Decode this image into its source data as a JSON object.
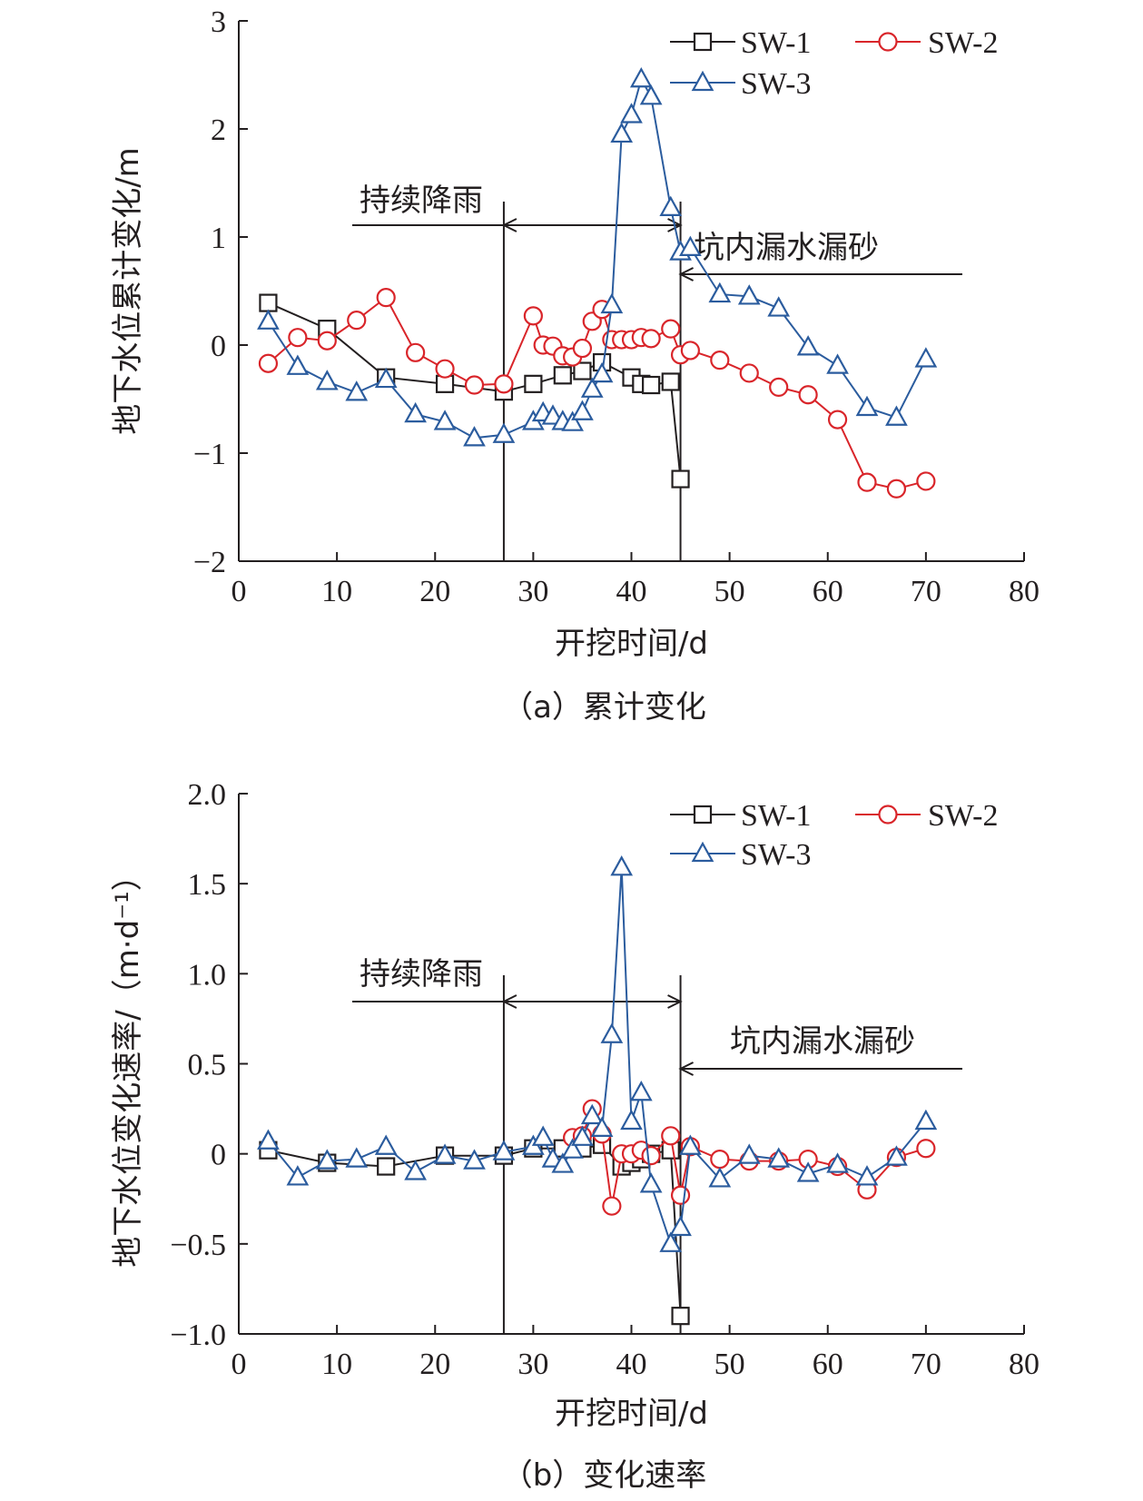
{
  "chart_data": [
    {
      "type": "line",
      "caption": "（a）累计变化",
      "xlabel": "开挖时间/d",
      "ylabel": "地下水位累计变化/m",
      "xlim": [
        0,
        80
      ],
      "ylim": [
        -2,
        3
      ],
      "x_ticks": [
        "0",
        "10",
        "20",
        "30",
        "40",
        "50",
        "60",
        "70",
        "80"
      ],
      "y_ticks": [
        "−2",
        "−1",
        "0",
        "1",
        "2",
        "3"
      ],
      "grid": false,
      "legend_position": "top-right",
      "annotations": [
        {
          "text": "持续降雨",
          "x_start": 27,
          "x_end": 45
        },
        {
          "text": "坑内漏水漏砂",
          "x_start": 45
        }
      ],
      "vertical_lines": [
        27,
        45
      ],
      "series": [
        {
          "name": "SW-1",
          "marker": "square",
          "color": "#231f20",
          "points": [
            [
              3,
              0.39
            ],
            [
              9,
              0.15
            ],
            [
              15,
              -0.3
            ],
            [
              21,
              -0.36
            ],
            [
              27,
              -0.43
            ],
            [
              30,
              -0.36
            ],
            [
              33,
              -0.28
            ],
            [
              35,
              -0.24
            ],
            [
              37,
              -0.16
            ],
            [
              40,
              -0.3
            ],
            [
              41,
              -0.36
            ],
            [
              42,
              -0.37
            ],
            [
              44,
              -0.34
            ],
            [
              45,
              -1.24
            ]
          ]
        },
        {
          "name": "SW-2",
          "marker": "circle",
          "color": "#d9252a",
          "points": [
            [
              3,
              -0.17
            ],
            [
              6,
              0.07
            ],
            [
              9,
              0.04
            ],
            [
              12,
              0.23
            ],
            [
              15,
              0.44
            ],
            [
              18,
              -0.07
            ],
            [
              21,
              -0.22
            ],
            [
              24,
              -0.37
            ],
            [
              27,
              -0.36
            ],
            [
              30,
              0.27
            ],
            [
              31,
              0.0
            ],
            [
              32,
              -0.01
            ],
            [
              33,
              -0.1
            ],
            [
              34,
              -0.11
            ],
            [
              35,
              -0.03
            ],
            [
              36,
              0.22
            ],
            [
              37,
              0.33
            ],
            [
              38,
              0.05
            ],
            [
              39,
              0.05
            ],
            [
              40,
              0.05
            ],
            [
              41,
              0.07
            ],
            [
              42,
              0.06
            ],
            [
              44,
              0.15
            ],
            [
              45,
              -0.09
            ],
            [
              46,
              -0.05
            ],
            [
              49,
              -0.14
            ],
            [
              52,
              -0.26
            ],
            [
              55,
              -0.39
            ],
            [
              58,
              -0.46
            ],
            [
              61,
              -0.69
            ],
            [
              64,
              -1.27
            ],
            [
              67,
              -1.33
            ],
            [
              70,
              -1.26
            ]
          ]
        },
        {
          "name": "SW-3",
          "marker": "triangle",
          "color": "#2b5c9e",
          "points": [
            [
              3,
              0.22
            ],
            [
              6,
              -0.2
            ],
            [
              9,
              -0.34
            ],
            [
              12,
              -0.44
            ],
            [
              15,
              -0.32
            ],
            [
              18,
              -0.64
            ],
            [
              21,
              -0.71
            ],
            [
              24,
              -0.86
            ],
            [
              27,
              -0.83
            ],
            [
              30,
              -0.71
            ],
            [
              31,
              -0.63
            ],
            [
              32,
              -0.66
            ],
            [
              33,
              -0.71
            ],
            [
              34,
              -0.72
            ],
            [
              35,
              -0.62
            ],
            [
              36,
              -0.41
            ],
            [
              37,
              -0.27
            ],
            [
              38,
              0.37
            ],
            [
              39,
              1.95
            ],
            [
              40,
              2.13
            ],
            [
              41,
              2.46
            ],
            [
              42,
              2.3
            ],
            [
              44,
              1.27
            ],
            [
              45,
              0.86
            ],
            [
              46,
              0.9
            ],
            [
              49,
              0.47
            ],
            [
              52,
              0.45
            ],
            [
              55,
              0.34
            ],
            [
              58,
              -0.02
            ],
            [
              61,
              -0.19
            ],
            [
              64,
              -0.58
            ],
            [
              67,
              -0.67
            ],
            [
              70,
              -0.13
            ]
          ]
        }
      ]
    },
    {
      "type": "line",
      "caption": "（b）变化速率",
      "xlabel": "开挖时间/d",
      "ylabel": "地下水位变化速率/（m·d⁻¹）",
      "xlim": [
        0,
        80
      ],
      "ylim": [
        -1.0,
        2.0
      ],
      "x_ticks": [
        "0",
        "10",
        "20",
        "30",
        "40",
        "50",
        "60",
        "70",
        "80"
      ],
      "y_ticks": [
        "−1.0",
        "−0.5",
        "0",
        "0.5",
        "1.0",
        "1.5",
        "2.0"
      ],
      "grid": false,
      "legend_position": "top-right",
      "annotations": [
        {
          "text": "持续降雨",
          "x_start": 27,
          "x_end": 45
        },
        {
          "text": "坑内漏水漏砂",
          "x_start": 45
        }
      ],
      "vertical_lines": [
        27,
        45
      ],
      "series": [
        {
          "name": "SW-1",
          "marker": "square",
          "color": "#231f20",
          "points": [
            [
              3,
              0.02
            ],
            [
              9,
              -0.05
            ],
            [
              15,
              -0.07
            ],
            [
              21,
              -0.01
            ],
            [
              27,
              -0.01
            ],
            [
              30,
              0.03
            ],
            [
              33,
              0.03
            ],
            [
              35,
              0.03
            ],
            [
              37,
              0.05
            ],
            [
              39,
              -0.07
            ],
            [
              40,
              -0.05
            ],
            [
              41,
              -0.03
            ],
            [
              42,
              0.0
            ],
            [
              44,
              0.02
            ],
            [
              45,
              -0.9
            ]
          ]
        },
        {
          "name": "SW-2",
          "marker": "circle",
          "color": "#d9252a",
          "points": [
            [
              34,
              0.09
            ],
            [
              35,
              0.1
            ],
            [
              36,
              0.25
            ],
            [
              37,
              0.11
            ],
            [
              38,
              -0.29
            ],
            [
              39,
              0.0
            ],
            [
              40,
              0.0
            ],
            [
              41,
              0.02
            ],
            [
              42,
              -0.01
            ],
            [
              44,
              0.1
            ],
            [
              45,
              -0.23
            ],
            [
              46,
              0.04
            ],
            [
              49,
              -0.03
            ],
            [
              52,
              -0.04
            ],
            [
              55,
              -0.04
            ],
            [
              58,
              -0.03
            ],
            [
              61,
              -0.07
            ],
            [
              64,
              -0.2
            ],
            [
              67,
              -0.02
            ],
            [
              70,
              0.03
            ]
          ]
        },
        {
          "name": "SW-3",
          "marker": "triangle",
          "color": "#2b5c9e",
          "points": [
            [
              3,
              0.07
            ],
            [
              6,
              -0.13
            ],
            [
              9,
              -0.04
            ],
            [
              12,
              -0.03
            ],
            [
              15,
              0.04
            ],
            [
              18,
              -0.1
            ],
            [
              21,
              -0.01
            ],
            [
              24,
              -0.04
            ],
            [
              27,
              0.01
            ],
            [
              30,
              0.04
            ],
            [
              31,
              0.09
            ],
            [
              32,
              -0.03
            ],
            [
              33,
              -0.06
            ],
            [
              34,
              0.02
            ],
            [
              35,
              0.09
            ],
            [
              36,
              0.21
            ],
            [
              37,
              0.14
            ],
            [
              38,
              0.66
            ],
            [
              39,
              1.59
            ],
            [
              40,
              0.18
            ],
            [
              41,
              0.34
            ],
            [
              42,
              -0.17
            ],
            [
              44,
              -0.5
            ],
            [
              45,
              -0.41
            ],
            [
              46,
              0.04
            ],
            [
              49,
              -0.14
            ],
            [
              52,
              -0.01
            ],
            [
              55,
              -0.03
            ],
            [
              58,
              -0.11
            ],
            [
              61,
              -0.06
            ],
            [
              64,
              -0.13
            ],
            [
              67,
              -0.02
            ],
            [
              70,
              0.18
            ]
          ]
        }
      ]
    }
  ]
}
